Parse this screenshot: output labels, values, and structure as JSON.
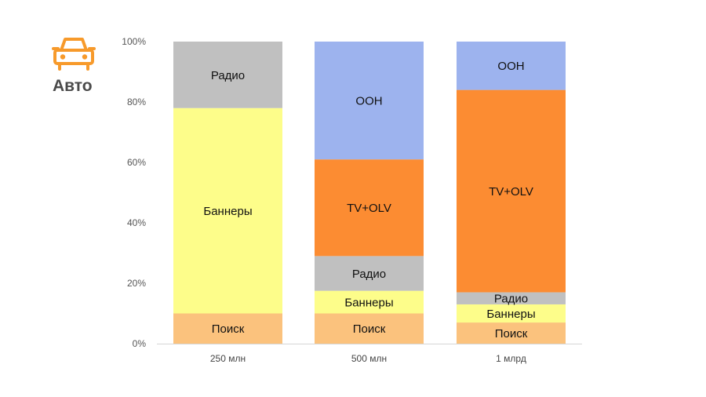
{
  "category": {
    "title": "Авто",
    "icon": "car-icon",
    "icon_color": "#f79a2b"
  },
  "chart_data": {
    "type": "bar",
    "stacked": true,
    "categories": [
      "250 млн",
      "500 млн",
      "1 млрд"
    ],
    "y_ticks": [
      "0%",
      "20%",
      "40%",
      "60%",
      "80%",
      "100%"
    ],
    "ylim": [
      0,
      100
    ],
    "grid": false,
    "series": [
      {
        "name": "Поиск",
        "color": "#fbc27d",
        "values": [
          10,
          10,
          7
        ]
      },
      {
        "name": "Баннеры",
        "color": "#fdfd8a",
        "values": [
          68,
          7.5,
          6
        ]
      },
      {
        "name": "Радио",
        "color": "#c0c0c0",
        "values": [
          22,
          11.5,
          4
        ]
      },
      {
        "name": "TV+OLV",
        "color": "#fc8c32",
        "values": [
          0,
          32,
          67
        ]
      },
      {
        "name": "OOH",
        "color": "#9db3ee",
        "values": [
          0,
          39,
          16
        ]
      }
    ]
  }
}
